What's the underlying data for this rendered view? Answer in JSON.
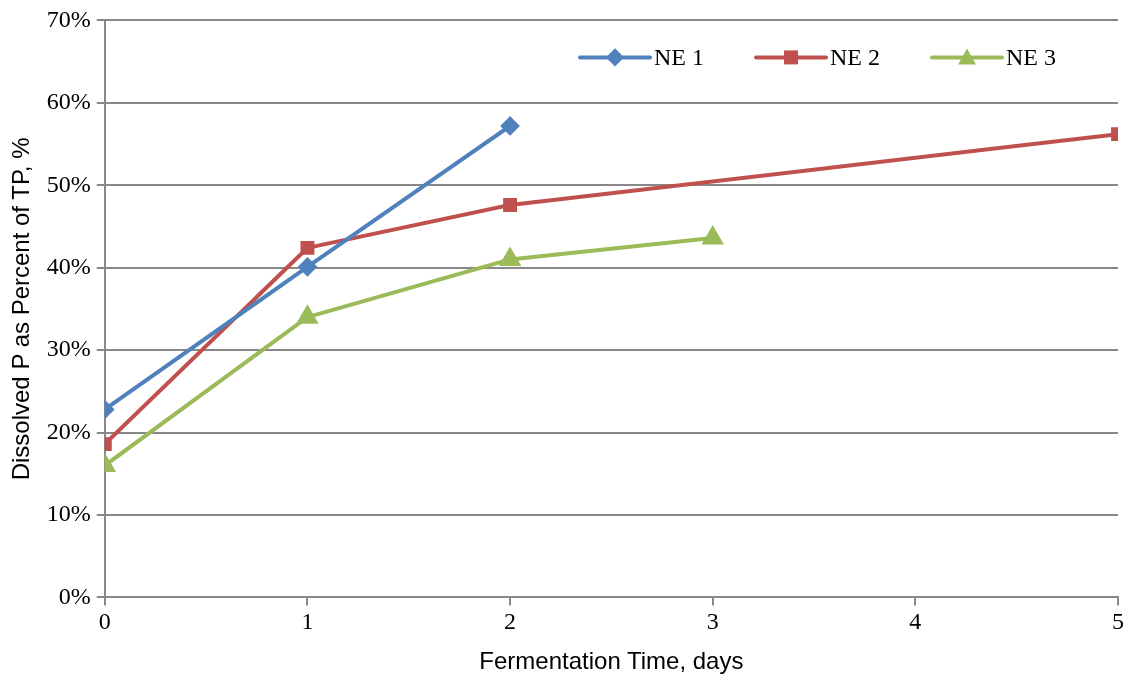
{
  "chart_data": {
    "type": "line",
    "xlabel": "Fermentation Time, days",
    "ylabel": "Dissolved P as Percent of TP, %",
    "series": [
      {
        "name": "NE 1",
        "color": "#4f81bd",
        "marker": "diamond",
        "x": [
          0,
          1,
          2
        ],
        "values": [
          22.8,
          40.1,
          57.2
        ]
      },
      {
        "name": "NE 2",
        "color": "#c0504d",
        "marker": "square",
        "x": [
          0,
          1,
          2,
          5
        ],
        "values": [
          18.6,
          42.4,
          47.6,
          56.2
        ]
      },
      {
        "name": "NE 3",
        "color": "#9bbb59",
        "marker": "triangle",
        "x": [
          0,
          1,
          2,
          3
        ],
        "values": [
          16,
          34,
          41,
          43.6
        ]
      }
    ],
    "xlim": [
      0,
      5
    ],
    "xticks": [
      0,
      1,
      2,
      3,
      4,
      5
    ],
    "ylim": [
      0,
      70
    ],
    "yticks": [
      {
        "value": 0,
        "label": "0%"
      },
      {
        "value": 10,
        "label": "10%"
      },
      {
        "value": 20,
        "label": "20%"
      },
      {
        "value": 30,
        "label": "30%"
      },
      {
        "value": 40,
        "label": "40%"
      },
      {
        "value": 50,
        "label": "50%"
      },
      {
        "value": 60,
        "label": "60%"
      },
      {
        "value": 70,
        "label": "70%"
      }
    ],
    "grid": "y",
    "legend": "top right",
    "line_style": "solid"
  }
}
